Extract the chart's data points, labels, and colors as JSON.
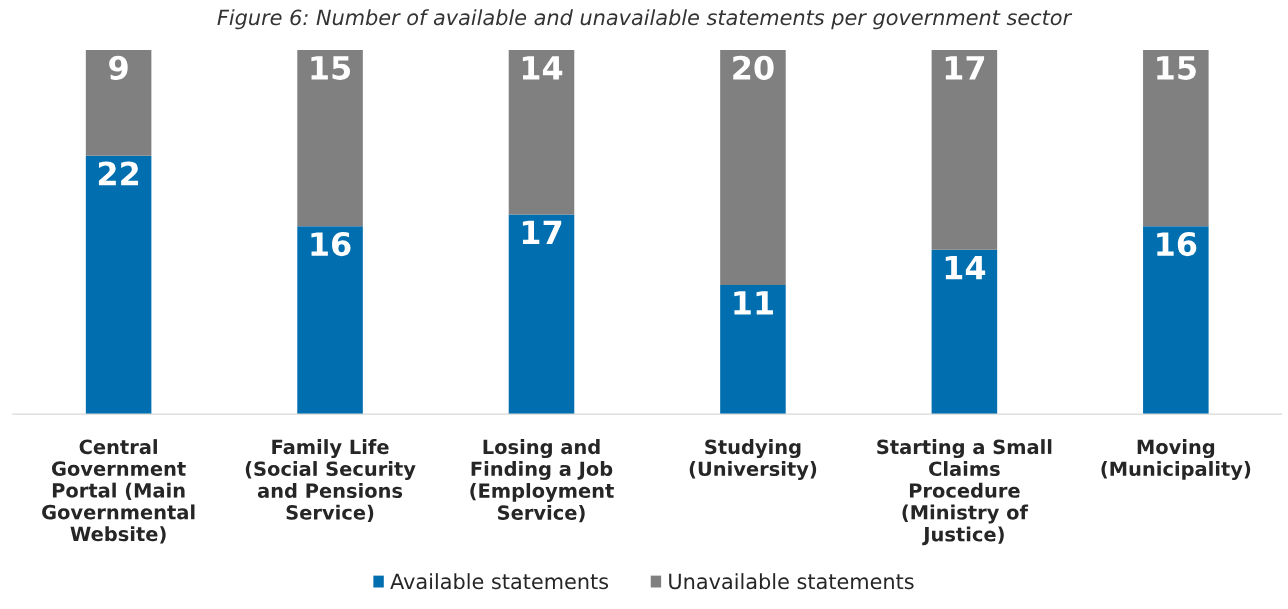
{
  "chart_data": {
    "type": "bar",
    "title": "Figure 6: Number of available and unavailable statements per government sector",
    "categories": [
      "Central\nGovernment\nPortal (Main\nGovernmental\nWebsite)",
      "Family Life\n(Social Security\nand Pensions\nService)",
      "Losing and\nFinding a Job\n(Employment\nService)",
      "Studying\n(University)",
      "Starting a Small\nClaims\nProcedure\n(Ministry of\nJustice)",
      "Moving\n(Municipality)"
    ],
    "series": [
      {
        "name": "Available statements",
        "color": "#006eaf",
        "values": [
          22,
          16,
          17,
          11,
          14,
          16
        ]
      },
      {
        "name": "Unavailable statements",
        "color": "#808080",
        "values": [
          9,
          15,
          14,
          20,
          17,
          15
        ]
      }
    ],
    "stacked": true,
    "data_labels": true,
    "tick_labels": "x",
    "legend": "bottom"
  }
}
